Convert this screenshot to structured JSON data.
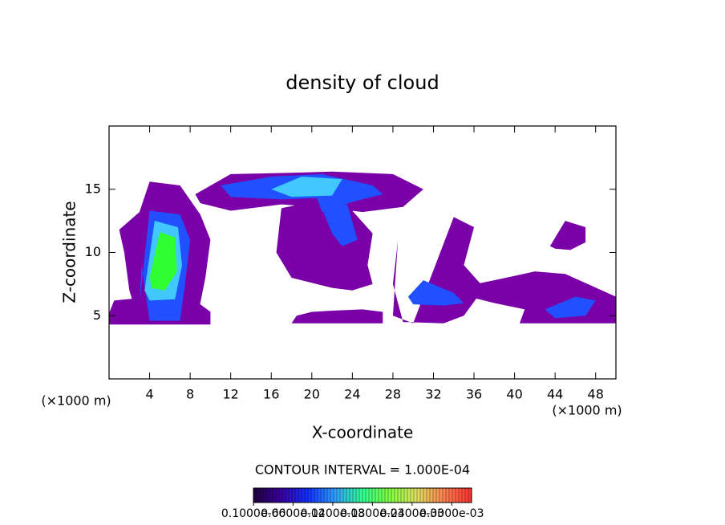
{
  "chart_data": {
    "type": "contour",
    "title": "density of cloud",
    "x_label": "X-coordinate",
    "y_label": "Z-coordinate",
    "x_unit": "(×1000 m)",
    "y_unit": "(×1000 m)",
    "annotation": "CONTOUR INTERVAL = 1.000E-04",
    "xlim": [
      0,
      50
    ],
    "ylim": [
      0,
      20
    ],
    "xticks": [
      4,
      8,
      12,
      16,
      20,
      24,
      28,
      32,
      36,
      40,
      44,
      48
    ],
    "yticks": [
      5,
      10,
      15
    ],
    "regions": [
      {
        "color": "#7a00a8",
        "x": [
          0,
          10,
          10,
          8.5,
          3,
          0.5,
          0
        ],
        "z": [
          4.3,
          4.3,
          5.3,
          6.2,
          6.4,
          6.2,
          5.2
        ]
      },
      {
        "color": "#7a00a8",
        "x": [
          1,
          3,
          4,
          7,
          9,
          10,
          9.5,
          9,
          8.5,
          3,
          2,
          1.5
        ],
        "z": [
          11.8,
          13.2,
          15.6,
          15.3,
          13,
          11,
          8,
          6,
          4.4,
          4.4,
          7,
          10
        ]
      },
      {
        "color": "#7a00a8",
        "x": [
          8.5,
          12,
          18,
          22,
          28,
          31,
          29,
          25,
          22,
          17,
          12,
          9
        ],
        "z": [
          14.6,
          16.2,
          16.3,
          16.4,
          16.2,
          15,
          13.6,
          13.2,
          13.5,
          13.8,
          13.3,
          13.9
        ]
      },
      {
        "color": "#7a00a8",
        "x": [
          17,
          20,
          24,
          26,
          25.5,
          26,
          24,
          22,
          18,
          16.5
        ],
        "z": [
          13.5,
          14,
          13.3,
          11.5,
          9,
          7.5,
          7,
          7.2,
          8,
          10
        ]
      },
      {
        "color": "#7a00a8",
        "x": [
          18,
          27,
          27,
          25,
          22,
          20,
          18.5
        ],
        "z": [
          4.4,
          4.4,
          5.3,
          5.5,
          5.4,
          5.3,
          5
        ]
      },
      {
        "color": "#7a00a8",
        "x": [
          28,
          30,
          31,
          34,
          36,
          35,
          37,
          35,
          33,
          29,
          28,
          28.5
        ],
        "z": [
          5,
          4.4,
          6.5,
          12.8,
          12,
          9,
          7.2,
          5,
          4.4,
          4.5,
          7.5,
          11
        ]
      },
      {
        "color": "#7a00a8",
        "x": [
          33,
          38,
          42,
          45,
          50,
          50,
          40.5,
          41,
          38
        ],
        "z": [
          7,
          7.8,
          8.5,
          8.3,
          6.5,
          4.4,
          4.4,
          5.5,
          6
        ]
      },
      {
        "color": "#7a00a8",
        "x": [
          43.5,
          45,
          47,
          47,
          45.5,
          44
        ],
        "z": [
          10.5,
          12.5,
          12,
          10.8,
          10.2,
          10.3
        ]
      },
      {
        "color": "#2050ff",
        "x": [
          3,
          4,
          7,
          8,
          7.5,
          7,
          4,
          3.2
        ],
        "z": [
          6,
          13.3,
          13,
          11,
          7.5,
          4.6,
          4.6,
          9
        ]
      },
      {
        "color": "#2050ff",
        "x": [
          11,
          16,
          21,
          26,
          27,
          24,
          21,
          20.5,
          17,
          12
        ],
        "z": [
          15.3,
          16,
          16.2,
          15.3,
          14.6,
          14,
          13.2,
          14.3,
          14.2,
          14.4
        ]
      },
      {
        "color": "#2050ff",
        "x": [
          21,
          23.5,
          24.5,
          23,
          22
        ],
        "z": [
          13.5,
          13.8,
          11,
          10.5,
          11.5
        ]
      },
      {
        "color": "#2050ff",
        "x": [
          29.5,
          31,
          34,
          35,
          33,
          30
        ],
        "z": [
          6.5,
          7.8,
          6.8,
          6,
          5.8,
          5.9
        ]
      },
      {
        "color": "#2050ff",
        "x": [
          43,
          46,
          48,
          47,
          44
        ],
        "z": [
          5.5,
          6.5,
          6.2,
          5,
          4.8
        ]
      },
      {
        "color": "#40c8ff",
        "x": [
          3.5,
          4.5,
          6.8,
          7.2,
          6.5,
          4
        ],
        "z": [
          7,
          12.5,
          12,
          9,
          6.3,
          6.2
        ]
      },
      {
        "color": "#40c8ff",
        "x": [
          16,
          19,
          23,
          22,
          18
        ],
        "z": [
          15,
          16,
          15.8,
          14.5,
          14.4
        ]
      },
      {
        "color": "#30ff30",
        "x": [
          4,
          5,
          6.5,
          6.7,
          5.5,
          4.2
        ],
        "z": [
          8,
          11.6,
          11.2,
          8.5,
          7,
          7.2
        ]
      }
    ],
    "colorbar": {
      "colormap": [
        "#200040",
        "#3a00a0",
        "#1030ff",
        "#30a0ff",
        "#30ff90",
        "#80ff40",
        "#e0e060",
        "#ff8050",
        "#ff3030"
      ],
      "clim": [
        0,
        0.00033
      ],
      "ticks": [
        {
          "value": 1e-07,
          "label": "0.1000e-06"
        },
        {
          "value": 6e-05,
          "label": "0.6000e-04"
        },
        {
          "value": 0.00012,
          "label": "0.1200e-03"
        },
        {
          "value": 0.00018,
          "label": "0.1800e-03"
        },
        {
          "value": 0.00024,
          "label": "0.2400e-03"
        },
        {
          "value": 0.0003,
          "label": "0.3000e-03"
        }
      ]
    }
  }
}
